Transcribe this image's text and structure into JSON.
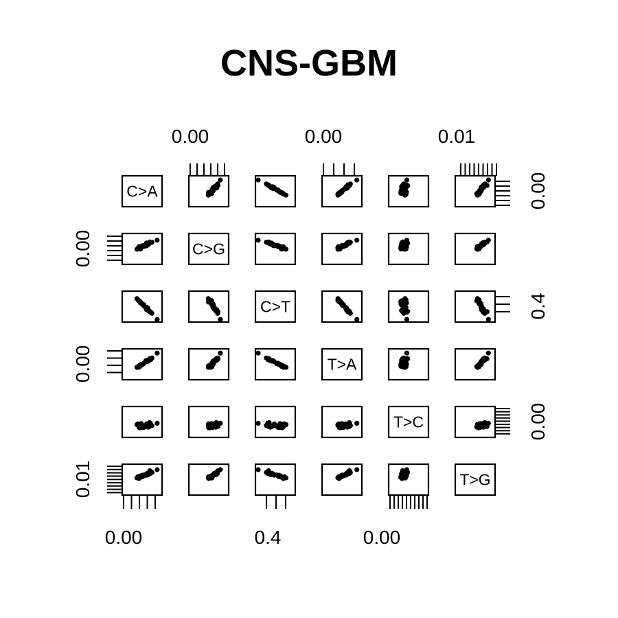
{
  "chart_data": {
    "type": "scatter",
    "subtype": "scatterplot-matrix",
    "title": "CNS-GBM",
    "variables": [
      "C>A",
      "C>G",
      "C>T",
      "T>A",
      "T>C",
      "T>G"
    ],
    "axis_tick_labels": {
      "top": [
        {
          "column": 1,
          "label": "0.00"
        },
        {
          "column": 3,
          "label": "0.00"
        },
        {
          "column": 5,
          "label": "0.01"
        }
      ],
      "bottom": [
        {
          "column": 0,
          "label": "0.00"
        },
        {
          "column": 2,
          "label": "0.4"
        },
        {
          "column": 4,
          "label": "0.00"
        }
      ],
      "left": [
        {
          "row": 1,
          "label": "0.00"
        },
        {
          "row": 3,
          "label": "0.00"
        },
        {
          "row": 5,
          "label": "0.01"
        }
      ],
      "right": [
        {
          "row": 0,
          "label": "0.00"
        },
        {
          "row": 2,
          "label": "0.4"
        },
        {
          "row": 4,
          "label": "0.00"
        }
      ]
    },
    "n_points_per_panel": 30,
    "grid": false,
    "legend": "none"
  },
  "colors": {
    "points": "#000000",
    "frame": "#000000",
    "background": "#ffffff"
  }
}
